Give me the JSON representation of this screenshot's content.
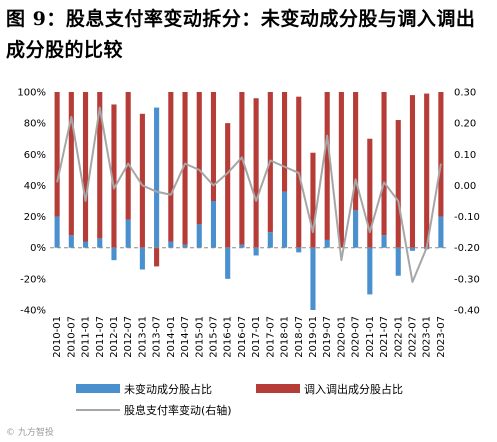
{
  "title": "图 9：股息支付率变动拆分：未变动成分股与调入调出成分股的比较",
  "chart_data": {
    "type": "bar+line",
    "title": "图 9：股息支付率变动拆分：未变动成分股与调入调出成分股的比较",
    "categories": [
      "2010-01",
      "2010-07",
      "2011-01",
      "2011-07",
      "2012-01",
      "2012-07",
      "2013-01",
      "2013-07",
      "2014-01",
      "2014-07",
      "2015-01",
      "2015-07",
      "2016-01",
      "2016-07",
      "2017-01",
      "2017-07",
      "2018-01",
      "2018-07",
      "2019-01",
      "2019-07",
      "2020-01",
      "2020-07",
      "2021-01",
      "2021-07",
      "2022-01",
      "2022-07",
      "2023-01",
      "2023-07"
    ],
    "left_axis": {
      "min": -40,
      "max": 100,
      "step": 20,
      "unit": "%"
    },
    "right_axis": {
      "min": -0.4,
      "max": 0.3,
      "step": 0.1,
      "label": "右轴"
    },
    "series": [
      {
        "name": "未变动成分股占比",
        "axis": "left",
        "kind": "bar",
        "color": "#4a90cf",
        "values": [
          20,
          8,
          4,
          6,
          -8,
          18,
          -14,
          90,
          4,
          2,
          15,
          30,
          -20,
          2,
          -5,
          10,
          36,
          -3,
          -40,
          5,
          0,
          24,
          -30,
          8,
          -18,
          -2,
          -1,
          20
        ]
      },
      {
        "name": "调入调出成分股占比",
        "axis": "left",
        "kind": "bar",
        "color": "#b63c38",
        "values": [
          80,
          92,
          96,
          94,
          92,
          82,
          86,
          -12,
          96,
          98,
          85,
          70,
          80,
          98,
          96,
          90,
          64,
          97,
          61,
          95,
          100,
          76,
          70,
          92,
          82,
          98,
          99,
          80
        ]
      },
      {
        "name": "股息支付率变动(右轴)",
        "axis": "right",
        "kind": "line",
        "color": "#a6a6a6",
        "values": [
          0.01,
          0.22,
          -0.05,
          0.25,
          -0.01,
          0.07,
          0.0,
          -0.02,
          -0.03,
          0.07,
          0.05,
          0.0,
          0.04,
          0.09,
          -0.05,
          0.08,
          0.06,
          0.04,
          -0.15,
          0.16,
          -0.24,
          0.02,
          -0.15,
          0.01,
          -0.05,
          -0.31,
          -0.2,
          0.07
        ]
      }
    ],
    "left_tick_labels": [
      "100%",
      "80%",
      "60%",
      "40%",
      "20%",
      "0%",
      "-20%",
      "-40%"
    ],
    "right_tick_labels": [
      "0.30",
      "0.20",
      "0.10",
      "0.00",
      "-0.10",
      "-0.20",
      "-0.30",
      "-0.40"
    ],
    "grid": false,
    "legend_position": "bottom"
  },
  "watermark": "© 九方智投"
}
